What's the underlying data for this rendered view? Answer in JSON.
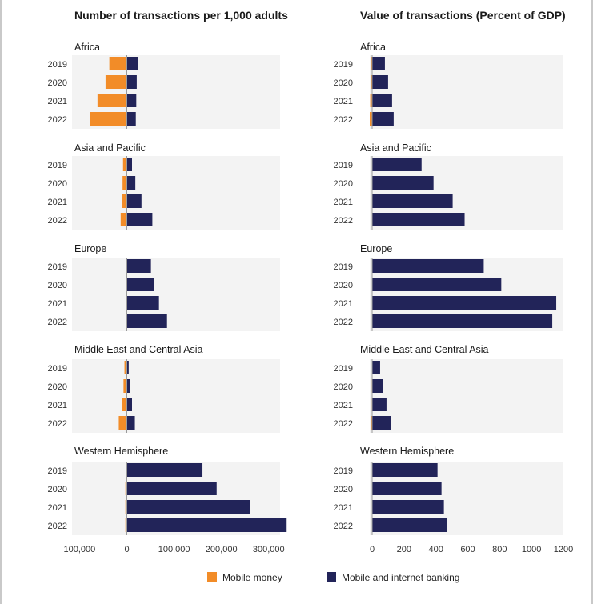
{
  "colors": {
    "mobile_money": "#f28c28",
    "banking": "#222459",
    "band": "#f3f3f3",
    "zero_line": "#9a9a9a"
  },
  "legend": {
    "mobile_money": "Mobile money",
    "banking": "Mobile and internet banking"
  },
  "chart_data": [
    {
      "type": "bar",
      "orientation": "horizontal",
      "stacking": "diverging",
      "title": "Number of transactions per 1,000 adults",
      "xlim": [
        -100000,
        340000
      ],
      "xticks": [
        -100000,
        0,
        100000,
        200000,
        300000
      ],
      "xtick_labels": [
        "100,000",
        "0",
        "100,000",
        "200,000",
        "300,000"
      ],
      "categories": [
        "2019",
        "2020",
        "2021",
        "2022"
      ],
      "panels": [
        {
          "name": "Africa",
          "series": [
            {
              "name": "Mobile money",
              "values": [
                -37000,
                -45000,
                -62000,
                -78000
              ]
            },
            {
              "name": "Mobile and internet banking",
              "values": [
                24000,
                21000,
                20000,
                19000
              ]
            }
          ]
        },
        {
          "name": "Asia and Pacific",
          "series": [
            {
              "name": "Mobile money",
              "values": [
                -8000,
                -9000,
                -10000,
                -13000
              ]
            },
            {
              "name": "Mobile and internet banking",
              "values": [
                11000,
                18000,
                31000,
                54000
              ]
            }
          ]
        },
        {
          "name": "Europe",
          "series": [
            {
              "name": "Mobile money",
              "values": [
                -1000,
                -1000,
                -1500,
                -1500
              ]
            },
            {
              "name": "Mobile and internet banking",
              "values": [
                51000,
                57000,
                68000,
                85000
              ]
            }
          ]
        },
        {
          "name": "Middle East and Central Asia",
          "series": [
            {
              "name": "Mobile money",
              "values": [
                -5000,
                -7000,
                -11000,
                -17000
              ]
            },
            {
              "name": "Mobile and internet banking",
              "values": [
                4000,
                6000,
                11000,
                17000
              ]
            }
          ]
        },
        {
          "name": "Western Hemisphere",
          "series": [
            {
              "name": "Mobile money",
              "values": [
                -2000,
                -3000,
                -3000,
                -3000
              ]
            },
            {
              "name": "Mobile and internet banking",
              "values": [
                160000,
                190000,
                261000,
                338000
              ]
            }
          ]
        }
      ]
    },
    {
      "type": "bar",
      "orientation": "horizontal",
      "stacking": "diverging",
      "title": "Value of transactions (Percent of GDP)",
      "xlim": [
        -10,
        1200
      ],
      "xticks": [
        0,
        200,
        400,
        600,
        800,
        1000,
        1200
      ],
      "xtick_labels": [
        "0",
        "200",
        "400",
        "600",
        "800",
        "1000",
        "1200"
      ],
      "categories": [
        "2019",
        "2020",
        "2021",
        "2022"
      ],
      "panels": [
        {
          "name": "Africa",
          "series": [
            {
              "name": "Mobile money",
              "values": [
                -8,
                -10,
                -12,
                -15
              ]
            },
            {
              "name": "Mobile and internet banking",
              "values": [
                80,
                100,
                125,
                135
              ]
            }
          ]
        },
        {
          "name": "Asia and Pacific",
          "series": [
            {
              "name": "Mobile money",
              "values": [
                0,
                0,
                0,
                0
              ]
            },
            {
              "name": "Mobile and internet banking",
              "values": [
                310,
                385,
                505,
                580
              ]
            }
          ]
        },
        {
          "name": "Europe",
          "series": [
            {
              "name": "Mobile money",
              "values": [
                0,
                0,
                0,
                0
              ]
            },
            {
              "name": "Mobile and internet banking",
              "values": [
                700,
                810,
                1155,
                1130
              ]
            }
          ]
        },
        {
          "name": "Middle East and Central Asia",
          "series": [
            {
              "name": "Mobile money",
              "values": [
                -2,
                -3,
                -3,
                -5
              ]
            },
            {
              "name": "Mobile and internet banking",
              "values": [
                50,
                70,
                90,
                120
              ]
            }
          ]
        },
        {
          "name": "Western Hemisphere",
          "series": [
            {
              "name": "Mobile money",
              "values": [
                0,
                0,
                0,
                0
              ]
            },
            {
              "name": "Mobile and internet banking",
              "values": [
                410,
                435,
                450,
                470
              ]
            }
          ]
        }
      ]
    }
  ]
}
